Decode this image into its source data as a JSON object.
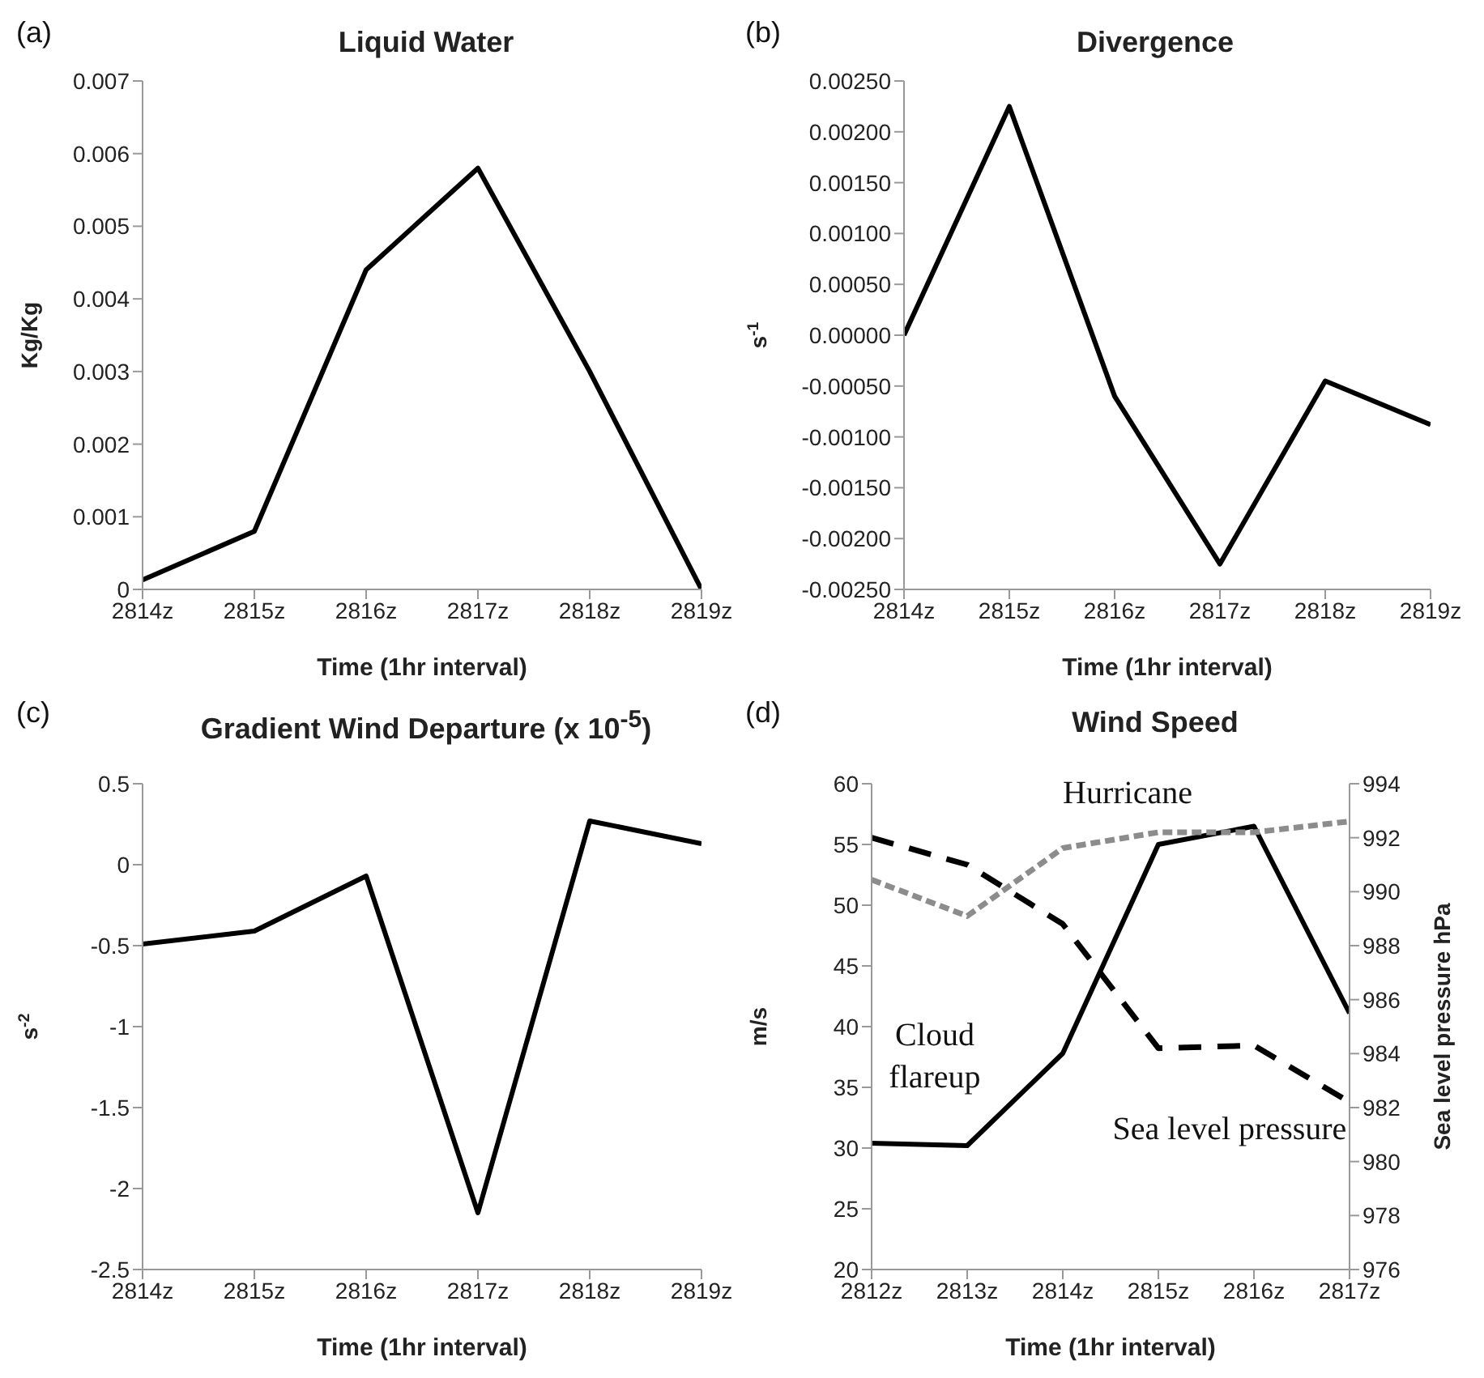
{
  "chart_data": [
    {
      "type": "line",
      "title": "Liquid Water",
      "xlabel": "Time (1hr interval)",
      "ylabel": "Kg/Kg",
      "annotations": [
        "(a)"
      ],
      "categories": [
        "2814z",
        "2815z",
        "2816z",
        "2817z",
        "2818z",
        "2819z"
      ],
      "series": [
        {
          "color": "#000000",
          "line_style": "solid",
          "values": [
            0.00013,
            0.0008,
            0.0044,
            0.0058,
            0.003,
            0.0
          ]
        }
      ],
      "ylim": [
        0,
        0.007
      ],
      "yticks": [
        0,
        {
          "value": 0.001,
          "label": "0.001"
        },
        {
          "value": 0.002,
          "label": "0.002"
        },
        {
          "value": 0.003,
          "label": "0.003"
        },
        {
          "value": 0.004,
          "label": "0.004"
        },
        {
          "value": 0.005,
          "label": "0.005"
        },
        {
          "value": 0.006,
          "label": "0.006"
        },
        {
          "value": 0.007,
          "label": "0.007"
        }
      ],
      "grid": false,
      "legend": false,
      "marker": "none"
    },
    {
      "type": "line",
      "title": "Divergence",
      "xlabel": "Time (1hr interval)",
      "ylabel": "s$^{-1}$",
      "annotations": [
        "(b)"
      ],
      "categories": [
        "2814z",
        "2815z",
        "2816z",
        "2817z",
        "2818z",
        "2819z"
      ],
      "series": [
        {
          "color": "#000000",
          "line_style": "solid",
          "values": [
            0.0,
            0.00225,
            -0.0006,
            -0.00225,
            -0.00045,
            -0.00088
          ]
        }
      ],
      "ylim": [
        -0.0025,
        0.0025
      ],
      "yticks": [
        {
          "value": -0.0025,
          "label": "-0.00250"
        },
        {
          "value": -0.002,
          "label": "-0.00200"
        },
        {
          "value": -0.0015,
          "label": "-0.00150"
        },
        {
          "value": -0.001,
          "label": "-0.00100"
        },
        {
          "value": -0.0005,
          "label": "-0.00050"
        },
        {
          "value": 0,
          "label": "0.00000"
        },
        {
          "value": 0.0005,
          "label": "0.00050"
        },
        {
          "value": 0.001,
          "label": "0.00100"
        },
        {
          "value": 0.0015,
          "label": "0.00150"
        },
        {
          "value": 0.002,
          "label": "0.00200"
        },
        {
          "value": 0.0025,
          "label": "0.00250"
        }
      ],
      "grid": false,
      "legend": false,
      "marker": "none"
    },
    {
      "type": "line",
      "title": "Gradient Wind Departure (x 10$^{-5}$)",
      "xlabel": "Time (1hr interval)",
      "ylabel": "s$^{-2}$",
      "annotations": [
        "(c)"
      ],
      "categories": [
        "2814z",
        "2815z",
        "2816z",
        "2817z",
        "2818z",
        "2819z"
      ],
      "series": [
        {
          "color": "#000000",
          "line_style": "solid",
          "values": [
            -0.49,
            -0.41,
            -0.07,
            -2.15,
            0.27,
            0.13
          ]
        }
      ],
      "ylim": [
        -2.5,
        0.5
      ],
      "yticks": [
        -2.5,
        -2,
        -1.5,
        -1,
        -0.5,
        0,
        0.5
      ],
      "grid": false,
      "legend": false,
      "marker": "none"
    },
    {
      "type": "line",
      "title": "Wind Speed",
      "xlabel": "Time (1hr interval)",
      "ylabel": "m/s",
      "y2label": "Sea level pressure hPa",
      "annotations": [
        "(d)"
      ],
      "categories": [
        "2812z",
        "2813z",
        "2814z",
        "2815z",
        "2816z",
        "2817z"
      ],
      "series": [
        {
          "name": "Cloud flareup",
          "color": "#000000",
          "line_style": "solid",
          "values": [
            30.4,
            30.2,
            37.8,
            55.0,
            56.5,
            41.1
          ]
        },
        {
          "name": "Hurricane",
          "color": "#8c8c8c",
          "line_style": "dotted",
          "values": [
            52.1,
            49.1,
            54.7,
            56.0,
            56.0,
            56.9
          ]
        },
        {
          "name": "Sea level pressure",
          "color": "#000000",
          "line_style": "dashed",
          "axis": "y2",
          "values": [
            992.0,
            991.0,
            988.8,
            984.2,
            984.3,
            982.2
          ]
        }
      ],
      "ylim": [
        20,
        60
      ],
      "yticks": [
        20,
        25,
        30,
        35,
        40,
        45,
        50,
        55,
        60
      ],
      "y2lim": [
        976,
        994
      ],
      "y2ticks": [
        976,
        978,
        980,
        982,
        984,
        986,
        988,
        990,
        992,
        994
      ],
      "grid": false,
      "legend": false,
      "marker": "none"
    }
  ]
}
